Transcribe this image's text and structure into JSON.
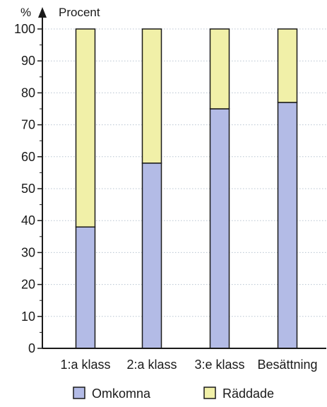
{
  "chart_data": {
    "type": "bar",
    "stacked": true,
    "categories": [
      "1:a klass",
      "2:a klass",
      "3:e klass",
      "Besättning"
    ],
    "series": [
      {
        "name": "Omkomna",
        "values": [
          38,
          58,
          75,
          77
        ],
        "color": "#b3bbe6"
      },
      {
        "name": "Räddade",
        "values": [
          62,
          42,
          25,
          23
        ],
        "color": "#f1f0a8"
      }
    ],
    "ylabel_unit": "%",
    "ylabel": "Procent",
    "ylim": [
      0,
      100
    ],
    "yticks": [
      0,
      10,
      20,
      30,
      40,
      50,
      60,
      70,
      80,
      90,
      100
    ],
    "grid": "dotted horizontal",
    "legend_position": "bottom"
  }
}
